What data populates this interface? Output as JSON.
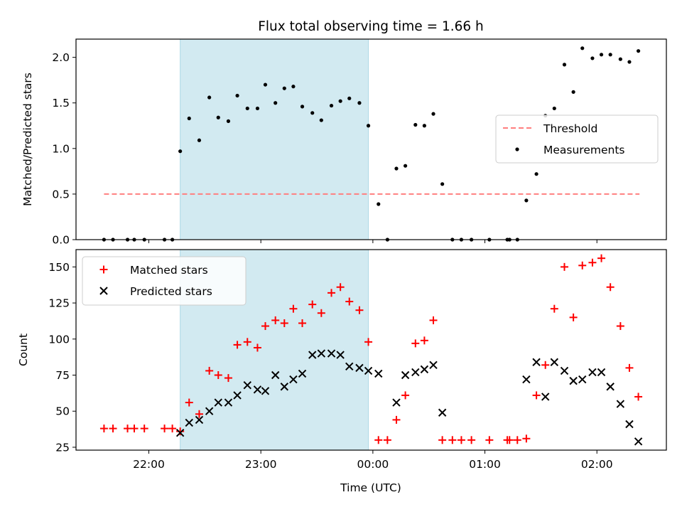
{
  "figure": {
    "title": "Flux total observing time = 1.66 h",
    "xlabel": "Time (UTC)"
  },
  "colors": {
    "band": "#add8e6",
    "threshold": "#ff7f7f",
    "matched": "#ff0000",
    "predicted": "#000000"
  },
  "chart_data": [
    {
      "type": "scatter",
      "panel": "top",
      "ylabel": "Matched/Predicted stars",
      "x_unit": "hours UTC (values past 24 are after midnight)",
      "xlim": [
        21.35,
        26.62
      ],
      "ylim": [
        0.0,
        2.2
      ],
      "yticks": [
        "0.0",
        "0.5",
        "1.0",
        "1.5",
        "2.0"
      ],
      "grid": false,
      "highlight_band": [
        22.28,
        23.96
      ],
      "threshold": {
        "name": "Threshold",
        "y": 0.5,
        "x_range": [
          21.6,
          26.38
        ]
      },
      "legend": {
        "position": "center-right",
        "entries": [
          "Threshold",
          "Measurements"
        ]
      },
      "series": [
        {
          "name": "Measurements",
          "x": [
            21.6,
            21.68,
            21.81,
            21.87,
            21.96,
            22.14,
            22.21,
            22.28,
            22.36,
            22.45,
            22.54,
            22.62,
            22.71,
            22.79,
            22.88,
            22.97,
            23.04,
            23.13,
            23.21,
            23.29,
            23.37,
            23.46,
            23.54,
            23.63,
            23.71,
            23.79,
            23.88,
            23.96,
            24.05,
            24.13,
            24.21,
            24.29,
            24.38,
            24.46,
            24.54,
            24.62,
            24.71,
            24.79,
            24.88,
            25.04,
            25.2,
            25.22,
            25.29,
            25.37,
            25.46,
            25.54,
            25.62,
            25.71,
            25.79,
            25.87,
            25.96,
            26.04,
            26.12,
            26.21,
            26.29,
            26.37
          ],
          "y": [
            0.0,
            0.0,
            0.0,
            0.0,
            0.0,
            0.0,
            0.0,
            0.97,
            1.33,
            1.09,
            1.56,
            1.34,
            1.3,
            1.58,
            1.44,
            1.44,
            1.7,
            1.5,
            1.66,
            1.68,
            1.46,
            1.39,
            1.31,
            1.47,
            1.52,
            1.55,
            1.5,
            1.25,
            0.39,
            0.0,
            0.78,
            0.81,
            1.26,
            1.25,
            1.38,
            0.61,
            0.0,
            0.0,
            0.0,
            0.0,
            0.0,
            0.0,
            0.0,
            0.43,
            0.72,
            1.36,
            1.44,
            1.92,
            1.62,
            2.1,
            1.99,
            2.03,
            2.03,
            1.98,
            1.95,
            2.07
          ]
        }
      ]
    },
    {
      "type": "scatter",
      "panel": "bottom",
      "ylabel": "Count",
      "x_unit": "hours UTC (values past 24 are after midnight)",
      "xlim": [
        21.35,
        26.62
      ],
      "ylim": [
        23,
        162
      ],
      "yticks": [
        "25",
        "50",
        "75",
        "100",
        "125",
        "150"
      ],
      "xticks": [
        "22:00",
        "23:00",
        "00:00",
        "01:00",
        "02:00"
      ],
      "grid": false,
      "highlight_band": [
        22.28,
        23.96
      ],
      "legend": {
        "position": "top-left",
        "entries": [
          "Matched stars",
          "Predicted stars"
        ]
      },
      "series": [
        {
          "name": "Matched stars",
          "x": [
            21.6,
            21.68,
            21.81,
            21.87,
            21.96,
            22.14,
            22.21,
            22.28,
            22.36,
            22.45,
            22.54,
            22.62,
            22.71,
            22.79,
            22.88,
            22.97,
            23.04,
            23.13,
            23.21,
            23.29,
            23.37,
            23.46,
            23.54,
            23.63,
            23.71,
            23.79,
            23.88,
            23.96,
            24.05,
            24.13,
            24.21,
            24.29,
            24.38,
            24.46,
            24.54,
            24.62,
            24.71,
            24.79,
            24.88,
            25.04,
            25.2,
            25.22,
            25.29,
            25.37,
            25.46,
            25.54,
            25.62,
            25.71,
            25.79,
            25.87,
            25.96,
            26.04,
            26.12,
            26.21,
            26.29,
            26.37
          ],
          "y": [
            38,
            38,
            38,
            38,
            38,
            38,
            38,
            36,
            56,
            48,
            78,
            75,
            73,
            96,
            98,
            94,
            109,
            113,
            111,
            121,
            111,
            124,
            118,
            132,
            136,
            126,
            120,
            98,
            30,
            30,
            44,
            61,
            97,
            99,
            113,
            30,
            30,
            30,
            30,
            30,
            30,
            30,
            30,
            31,
            61,
            82,
            121,
            150,
            115,
            151,
            153,
            156,
            136,
            109,
            80,
            60
          ]
        },
        {
          "name": "Predicted stars",
          "x": [
            22.28,
            22.36,
            22.45,
            22.54,
            22.62,
            22.71,
            22.79,
            22.88,
            22.97,
            23.04,
            23.13,
            23.21,
            23.29,
            23.37,
            23.46,
            23.54,
            23.63,
            23.71,
            23.79,
            23.88,
            23.96,
            24.05,
            24.21,
            24.29,
            24.38,
            24.46,
            24.54,
            24.62,
            25.37,
            25.46,
            25.54,
            25.62,
            25.71,
            25.79,
            25.87,
            25.96,
            26.04,
            26.12,
            26.21,
            26.29,
            26.37
          ],
          "y": [
            35,
            42,
            44,
            50,
            56,
            56,
            61,
            68,
            65,
            64,
            75,
            67,
            72,
            76,
            89,
            90,
            90,
            89,
            81,
            80,
            78,
            76,
            56,
            75,
            77,
            79,
            82,
            49,
            72,
            84,
            60,
            84,
            78,
            71,
            72,
            77,
            77,
            67,
            55,
            41,
            29
          ]
        }
      ]
    }
  ]
}
